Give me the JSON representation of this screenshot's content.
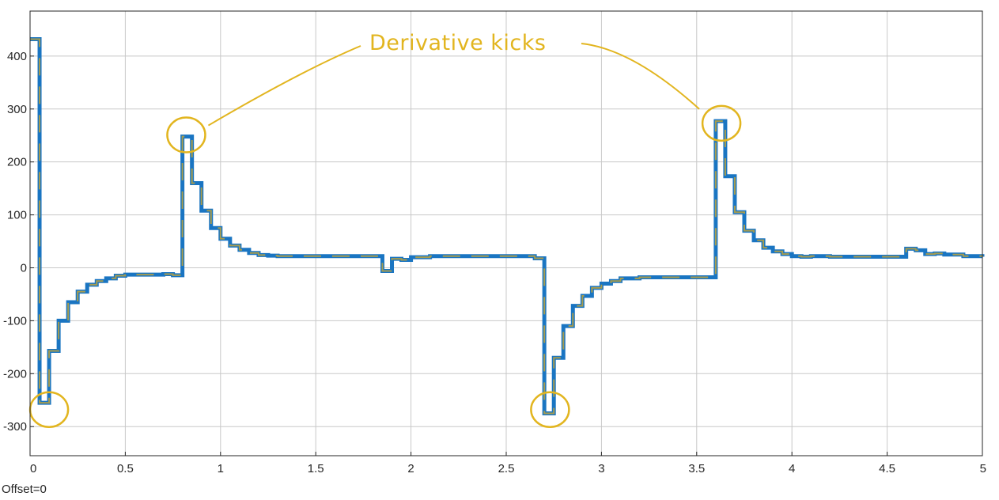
{
  "footer": {
    "offset_label": "Offset=0"
  },
  "colors": {
    "signal": "#1a75c2",
    "signal_dash": "#d4a92a",
    "annotation": "#e2b51f",
    "grid": "#c8c8c8",
    "axes": "#262626"
  },
  "chart_data": {
    "type": "line",
    "title": "",
    "xlabel": "",
    "ylabel": "",
    "xlim": [
      0,
      5
    ],
    "ylim": [
      -355,
      485
    ],
    "grid": true,
    "xticks": [
      0,
      0.5,
      1,
      1.5,
      2,
      2.5,
      3,
      3.5,
      4,
      4.5,
      5
    ],
    "xtick_labels": [
      "0",
      "0.5",
      "1",
      "1.5",
      "2",
      "2.5",
      "3",
      "3.5",
      "4",
      "4.5",
      "5"
    ],
    "yticks": [
      -300,
      -200,
      -100,
      0,
      100,
      200,
      300,
      400
    ],
    "ytick_labels": [
      "-300",
      "-200",
      "-100",
      "0",
      "100",
      "200",
      "300",
      "400"
    ],
    "series": [
      {
        "name": "",
        "step": true,
        "x": [
          0,
          0.05,
          0.1,
          0.15,
          0.2,
          0.25,
          0.3,
          0.35,
          0.4,
          0.45,
          0.5,
          0.55,
          0.6,
          0.65,
          0.7,
          0.75,
          0.8,
          0.85,
          0.9,
          0.95,
          1.0,
          1.05,
          1.1,
          1.15,
          1.2,
          1.25,
          1.3,
          1.5,
          1.85,
          1.9,
          1.95,
          2.0,
          2.1,
          2.2,
          2.5,
          2.65,
          2.7,
          2.75,
          2.8,
          2.85,
          2.9,
          2.95,
          3.0,
          3.05,
          3.1,
          3.2,
          3.5,
          3.6,
          3.65,
          3.7,
          3.75,
          3.8,
          3.85,
          3.9,
          3.95,
          4.0,
          4.05,
          4.1,
          4.2,
          4.5,
          4.6,
          4.65,
          4.7,
          4.75,
          4.8,
          4.9,
          5.0
        ],
        "y": [
          432,
          -255,
          -157,
          -100,
          -65,
          -45,
          -32,
          -25,
          -20,
          -15,
          -13,
          -13,
          -13,
          -13,
          -12,
          -14,
          248,
          160,
          108,
          75,
          55,
          42,
          34,
          28,
          24,
          23,
          22,
          22,
          -6,
          17,
          15,
          20,
          22,
          22,
          22,
          18,
          -275,
          -170,
          -110,
          -72,
          -53,
          -38,
          -30,
          -25,
          -20,
          -18,
          -18,
          277,
          173,
          105,
          70,
          52,
          38,
          31,
          26,
          22,
          21,
          22,
          21,
          21,
          36,
          33,
          26,
          27,
          25,
          22,
          21
        ]
      }
    ],
    "annotations": {
      "label": "Derivative kicks",
      "circles": [
        {
          "x": 0.1,
          "y": -268
        },
        {
          "x": 0.82,
          "y": 251
        },
        {
          "x": 2.73,
          "y": -268
        },
        {
          "x": 3.63,
          "y": 273
        }
      ]
    }
  }
}
